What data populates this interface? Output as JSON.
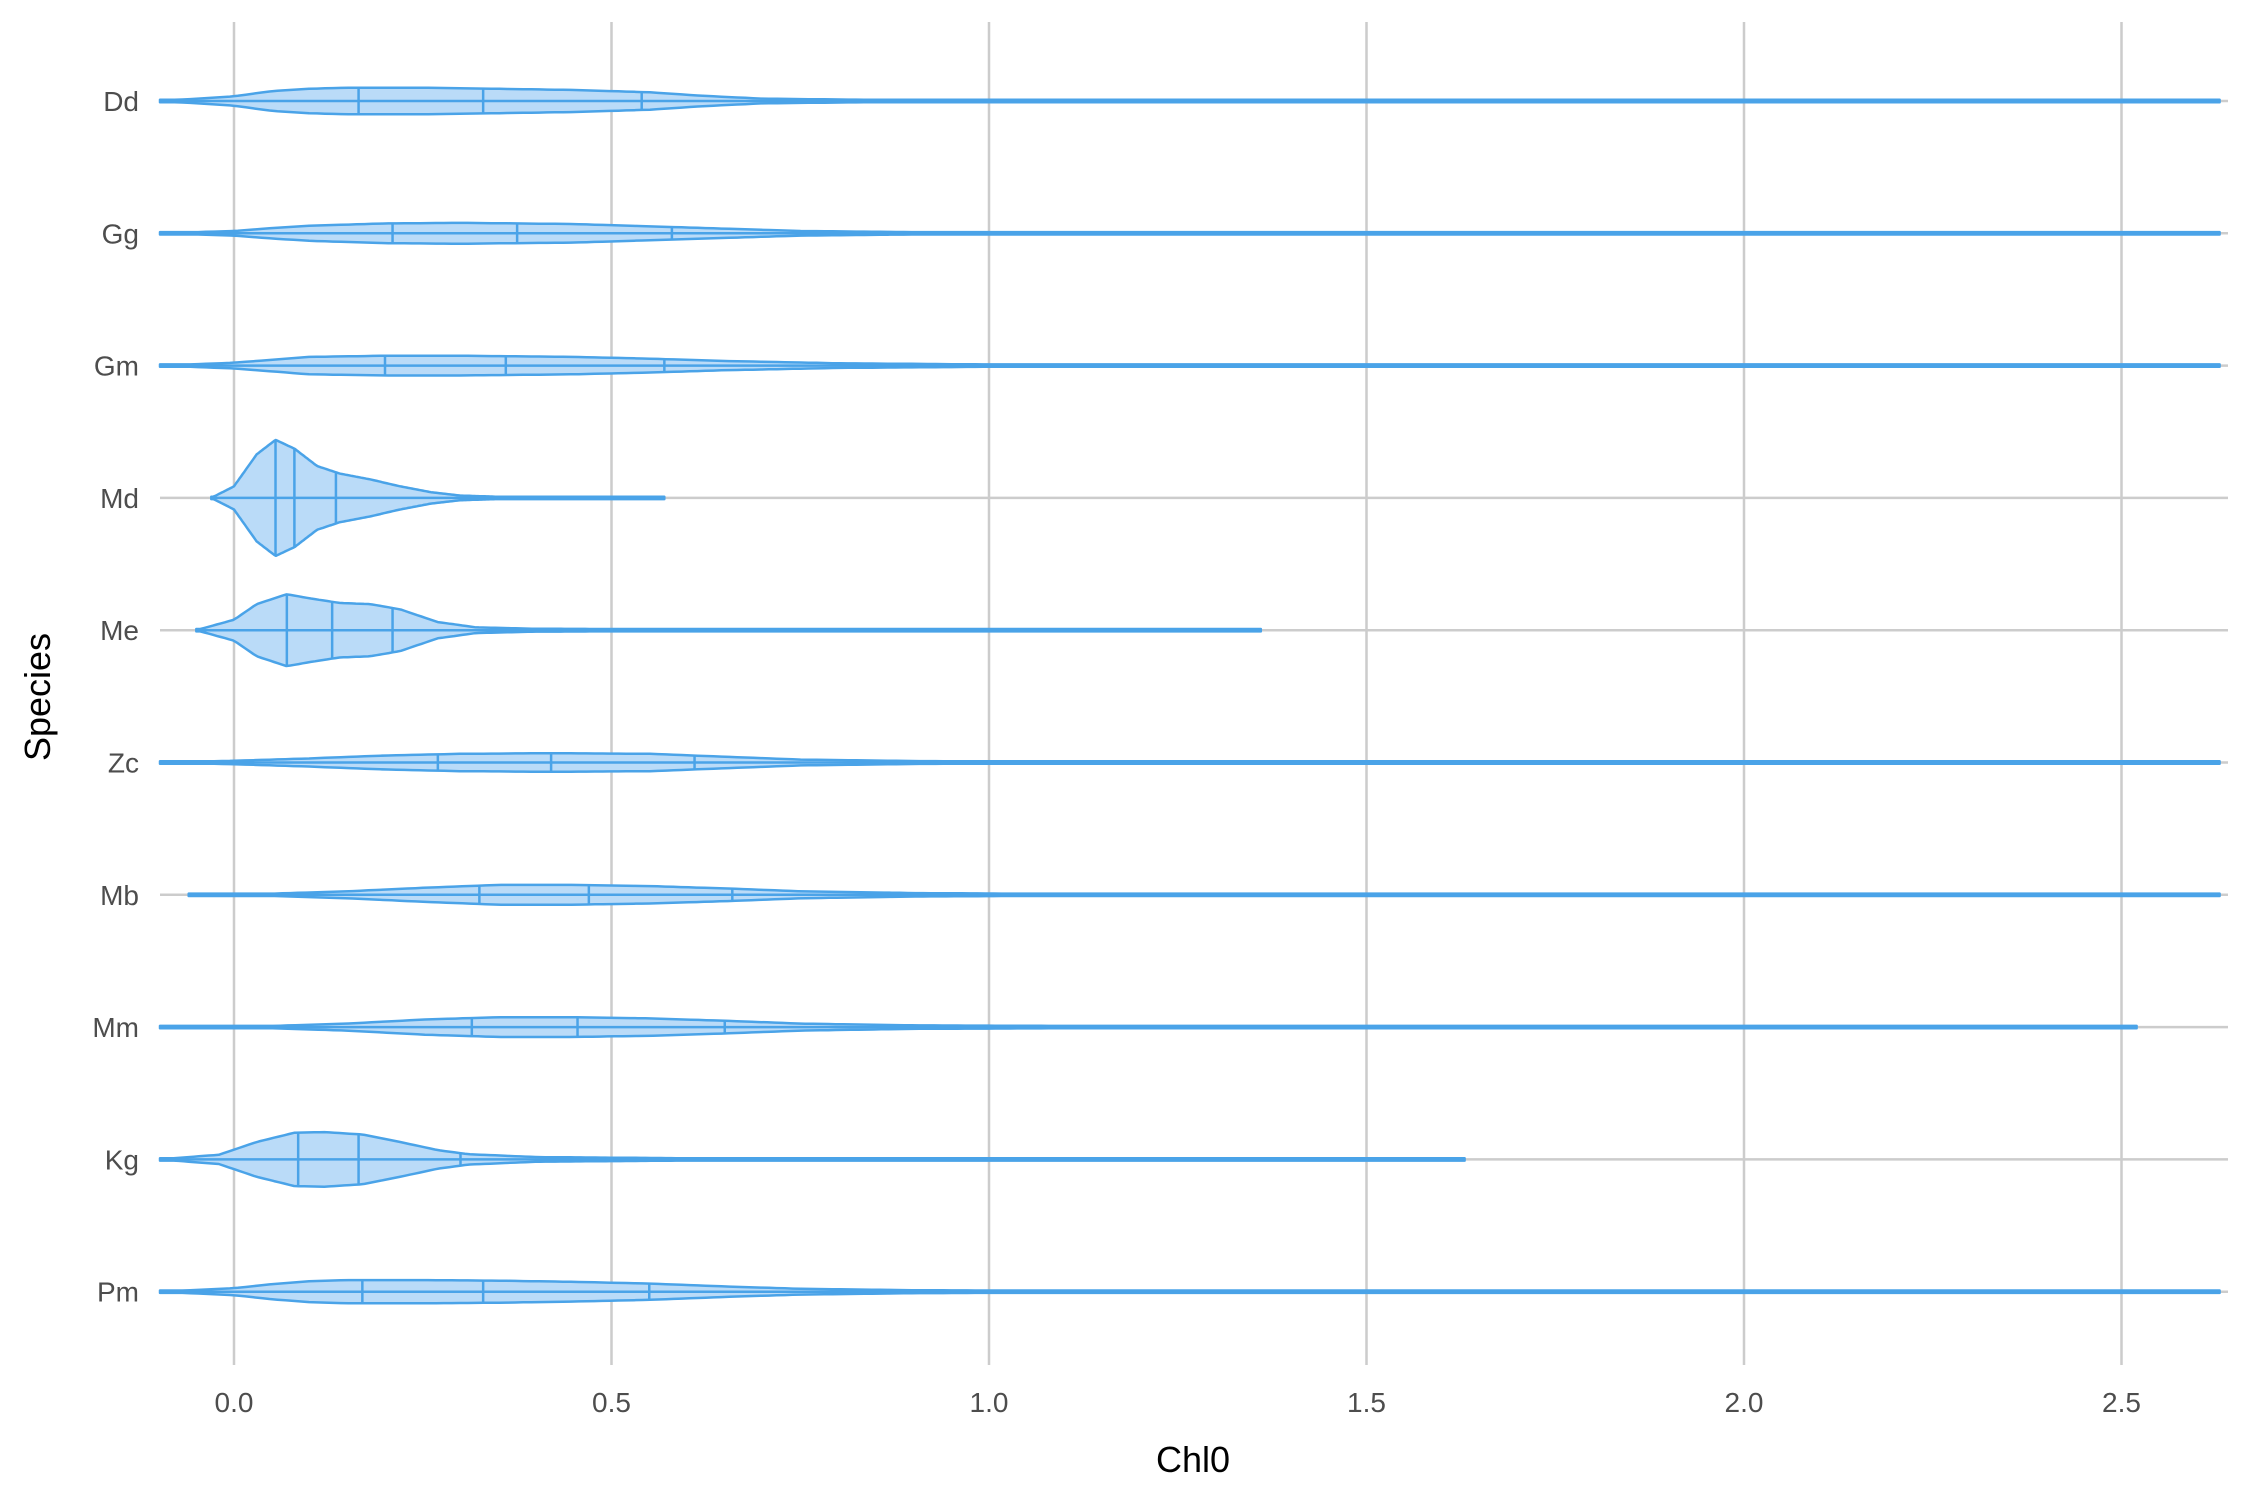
{
  "chart_data": {
    "type": "violin",
    "orientation": "horizontal",
    "xlabel": "Chl0",
    "ylabel": "Species",
    "xlim": [
      -0.1,
      2.63
    ],
    "x_ticks": [
      "0.0",
      "0.5",
      "1.0",
      "1.5",
      "2.0",
      "2.5"
    ],
    "x_tick_values": [
      0,
      0.5,
      1.0,
      1.5,
      2.0,
      2.5
    ],
    "grid": true,
    "legend": "none",
    "fill_color": "#BADBF8",
    "line_color": "#4AA3E8",
    "grid_color": "#cccccc",
    "categories": [
      "Dd",
      "Gg",
      "Gm",
      "Md",
      "Me",
      "Zc",
      "Mb",
      "Mm",
      "Kg",
      "Pm"
    ],
    "series": [
      {
        "label": "Dd",
        "min": -0.1,
        "max": 2.63,
        "quantiles": [
          0.165,
          0.33,
          0.54
        ],
        "density": [
          [
            -0.1,
            0
          ],
          [
            0.0,
            0.08
          ],
          [
            0.05,
            0.17
          ],
          [
            0.1,
            0.21
          ],
          [
            0.15,
            0.23
          ],
          [
            0.25,
            0.23
          ],
          [
            0.35,
            0.21
          ],
          [
            0.45,
            0.19
          ],
          [
            0.55,
            0.15
          ],
          [
            0.62,
            0.09
          ],
          [
            0.7,
            0.04
          ],
          [
            0.85,
            0.02
          ],
          [
            1.0,
            0.012
          ],
          [
            1.5,
            0.008
          ],
          [
            2.0,
            0.006
          ],
          [
            2.63,
            0.005
          ]
        ]
      },
      {
        "label": "Gg",
        "min": -0.1,
        "max": 2.63,
        "quantiles": [
          0.21,
          0.375,
          0.58
        ],
        "density": [
          [
            -0.1,
            0
          ],
          [
            0.0,
            0.04
          ],
          [
            0.05,
            0.09
          ],
          [
            0.1,
            0.13
          ],
          [
            0.2,
            0.17
          ],
          [
            0.3,
            0.18
          ],
          [
            0.45,
            0.16
          ],
          [
            0.55,
            0.12
          ],
          [
            0.65,
            0.08
          ],
          [
            0.75,
            0.04
          ],
          [
            0.9,
            0.02
          ],
          [
            1.2,
            0.012
          ],
          [
            1.6,
            0.006
          ],
          [
            2.63,
            0.004
          ]
        ]
      },
      {
        "label": "Gm",
        "min": -0.1,
        "max": 2.63,
        "quantiles": [
          0.2,
          0.36,
          0.57
        ],
        "density": [
          [
            -0.1,
            0
          ],
          [
            0.0,
            0.05
          ],
          [
            0.05,
            0.1
          ],
          [
            0.1,
            0.15
          ],
          [
            0.2,
            0.17
          ],
          [
            0.3,
            0.17
          ],
          [
            0.45,
            0.15
          ],
          [
            0.55,
            0.12
          ],
          [
            0.65,
            0.08
          ],
          [
            0.8,
            0.04
          ],
          [
            1.0,
            0.02
          ],
          [
            1.3,
            0.012
          ],
          [
            1.5,
            0.006
          ],
          [
            2.63,
            0.004
          ]
        ]
      },
      {
        "label": "Md",
        "min": -0.03,
        "max": 0.57,
        "quantiles": [
          0.055,
          0.08,
          0.135
        ],
        "density": [
          [
            -0.03,
            0
          ],
          [
            0.0,
            0.2
          ],
          [
            0.03,
            0.75
          ],
          [
            0.055,
            1.0
          ],
          [
            0.08,
            0.85
          ],
          [
            0.11,
            0.55
          ],
          [
            0.14,
            0.42
          ],
          [
            0.18,
            0.32
          ],
          [
            0.22,
            0.2
          ],
          [
            0.26,
            0.1
          ],
          [
            0.3,
            0.04
          ],
          [
            0.35,
            0.02
          ],
          [
            0.45,
            0.015
          ],
          [
            0.57,
            0.008
          ]
        ]
      },
      {
        "label": "Me",
        "min": -0.05,
        "max": 1.36,
        "quantiles": [
          0.07,
          0.13,
          0.21
        ],
        "density": [
          [
            -0.05,
            0
          ],
          [
            0.0,
            0.18
          ],
          [
            0.03,
            0.45
          ],
          [
            0.07,
            0.62
          ],
          [
            0.1,
            0.55
          ],
          [
            0.14,
            0.47
          ],
          [
            0.18,
            0.45
          ],
          [
            0.22,
            0.36
          ],
          [
            0.27,
            0.14
          ],
          [
            0.32,
            0.05
          ],
          [
            0.4,
            0.025
          ],
          [
            0.6,
            0.015
          ],
          [
            1.0,
            0.012
          ],
          [
            1.36,
            0.008
          ]
        ]
      },
      {
        "label": "Zc",
        "min": -0.1,
        "max": 2.63,
        "quantiles": [
          0.27,
          0.42,
          0.61
        ],
        "density": [
          [
            -0.1,
            0
          ],
          [
            0.0,
            0.03
          ],
          [
            0.1,
            0.07
          ],
          [
            0.2,
            0.12
          ],
          [
            0.3,
            0.15
          ],
          [
            0.42,
            0.16
          ],
          [
            0.55,
            0.15
          ],
          [
            0.65,
            0.1
          ],
          [
            0.75,
            0.05
          ],
          [
            0.9,
            0.025
          ],
          [
            1.1,
            0.015
          ],
          [
            1.35,
            0.008
          ],
          [
            2.63,
            0.004
          ]
        ]
      },
      {
        "label": "Mb",
        "min": -0.06,
        "max": 2.63,
        "quantiles": [
          0.325,
          0.47,
          0.66
        ],
        "density": [
          [
            -0.06,
            0
          ],
          [
            0.05,
            0.02
          ],
          [
            0.15,
            0.06
          ],
          [
            0.25,
            0.12
          ],
          [
            0.35,
            0.17
          ],
          [
            0.45,
            0.17
          ],
          [
            0.55,
            0.15
          ],
          [
            0.65,
            0.11
          ],
          [
            0.75,
            0.06
          ],
          [
            0.9,
            0.03
          ],
          [
            1.1,
            0.015
          ],
          [
            1.5,
            0.008
          ],
          [
            2.63,
            0.004
          ]
        ]
      },
      {
        "label": "Mm",
        "min": -0.1,
        "max": 2.52,
        "quantiles": [
          0.315,
          0.455,
          0.65
        ],
        "density": [
          [
            -0.1,
            0
          ],
          [
            0.05,
            0.02
          ],
          [
            0.15,
            0.06
          ],
          [
            0.25,
            0.13
          ],
          [
            0.35,
            0.17
          ],
          [
            0.45,
            0.17
          ],
          [
            0.55,
            0.15
          ],
          [
            0.65,
            0.11
          ],
          [
            0.75,
            0.06
          ],
          [
            0.9,
            0.03
          ],
          [
            1.2,
            0.015
          ],
          [
            1.6,
            0.008
          ],
          [
            2.52,
            0.004
          ]
        ]
      },
      {
        "label": "Kg",
        "min": -0.1,
        "max": 1.63,
        "quantiles": [
          0.085,
          0.165,
          0.3
        ],
        "density": [
          [
            -0.1,
            0
          ],
          [
            -0.02,
            0.08
          ],
          [
            0.03,
            0.3
          ],
          [
            0.08,
            0.46
          ],
          [
            0.12,
            0.47
          ],
          [
            0.17,
            0.43
          ],
          [
            0.22,
            0.3
          ],
          [
            0.27,
            0.16
          ],
          [
            0.31,
            0.09
          ],
          [
            0.4,
            0.04
          ],
          [
            0.6,
            0.02
          ],
          [
            1.0,
            0.012
          ],
          [
            1.3,
            0.008
          ],
          [
            1.63,
            0.004
          ]
        ]
      },
      {
        "label": "Pm",
        "min": -0.1,
        "max": 2.63,
        "quantiles": [
          0.17,
          0.33,
          0.55
        ],
        "density": [
          [
            -0.1,
            0
          ],
          [
            0.0,
            0.06
          ],
          [
            0.05,
            0.13
          ],
          [
            0.1,
            0.18
          ],
          [
            0.15,
            0.2
          ],
          [
            0.25,
            0.2
          ],
          [
            0.35,
            0.19
          ],
          [
            0.45,
            0.17
          ],
          [
            0.55,
            0.14
          ],
          [
            0.65,
            0.09
          ],
          [
            0.75,
            0.05
          ],
          [
            0.9,
            0.025
          ],
          [
            1.2,
            0.012
          ],
          [
            1.65,
            0.008
          ],
          [
            2.63,
            0.004
          ]
        ]
      }
    ]
  }
}
